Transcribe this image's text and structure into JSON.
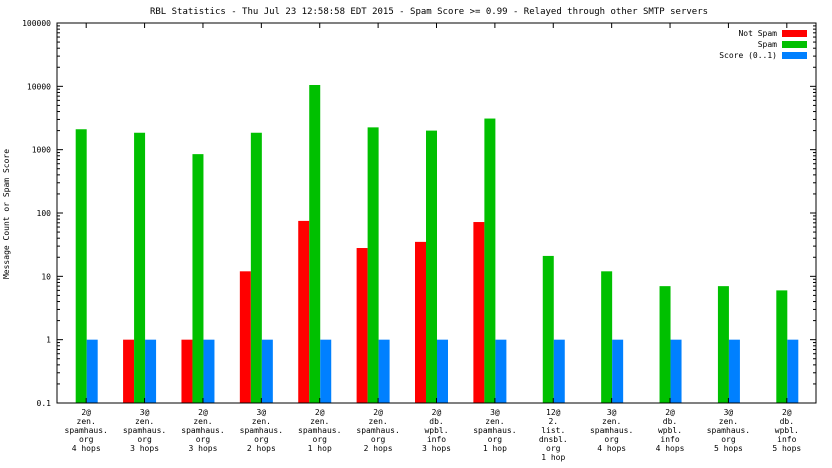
{
  "chart_data": {
    "type": "bar",
    "title": "RBL Statistics - Thu Jul 23 12:58:58 EDT 2015 - Spam Score >= 0.99 - Relayed through other SMTP servers",
    "xlabel": "",
    "ylabel": "Message Count or Spam Score",
    "yscale": "log",
    "ylim": [
      0.1,
      100000
    ],
    "yticks": [
      0.1,
      1,
      10,
      100,
      1000,
      10000,
      100000
    ],
    "ytick_labels": [
      "0.1",
      "1",
      "10",
      "100",
      "1000",
      "10000",
      "100000"
    ],
    "legend_position": "top-right",
    "categories": [
      [
        "2@",
        "zen.",
        "spamhaus.",
        "org",
        "4 hops"
      ],
      [
        "3@",
        "zen.",
        "spamhaus.",
        "org",
        "3 hops"
      ],
      [
        "2@",
        "zen.",
        "spamhaus.",
        "org",
        "3 hops"
      ],
      [
        "3@",
        "zen.",
        "spamhaus.",
        "org",
        "2 hops"
      ],
      [
        "2@",
        "zen.",
        "spamhaus.",
        "org",
        "1 hop"
      ],
      [
        "2@",
        "zen.",
        "spamhaus.",
        "org",
        "2 hops"
      ],
      [
        "2@",
        "db.",
        "wpbl.",
        "info",
        "3 hops"
      ],
      [
        "3@",
        "zen.",
        "spamhaus.",
        "org",
        "1 hop"
      ],
      [
        "12@",
        "2.",
        "list.",
        "dnsbl.",
        "org",
        "1 hop"
      ],
      [
        "3@",
        "zen.",
        "spamhaus.",
        "org",
        "4 hops"
      ],
      [
        "2@",
        "db.",
        "wpbl.",
        "info",
        "4 hops"
      ],
      [
        "3@",
        "zen.",
        "spamhaus.",
        "org",
        "5 hops"
      ],
      [
        "2@",
        "db.",
        "wpbl.",
        "info",
        "5 hops"
      ]
    ],
    "series": [
      {
        "name": "Not Spam",
        "color": "#ff0000",
        "values": [
          null,
          1,
          1,
          12,
          75,
          28,
          35,
          72,
          null,
          null,
          null,
          null,
          null
        ]
      },
      {
        "name": "Spam",
        "color": "#00c000",
        "values": [
          2100,
          1850,
          850,
          1850,
          10500,
          2250,
          2000,
          3100,
          21,
          12,
          7,
          7,
          6
        ]
      },
      {
        "name": "Score (0..1)",
        "color": "#0080ff",
        "values": [
          1,
          1,
          1,
          1,
          1,
          1,
          1,
          1,
          1,
          1,
          1,
          1,
          1
        ]
      }
    ]
  }
}
